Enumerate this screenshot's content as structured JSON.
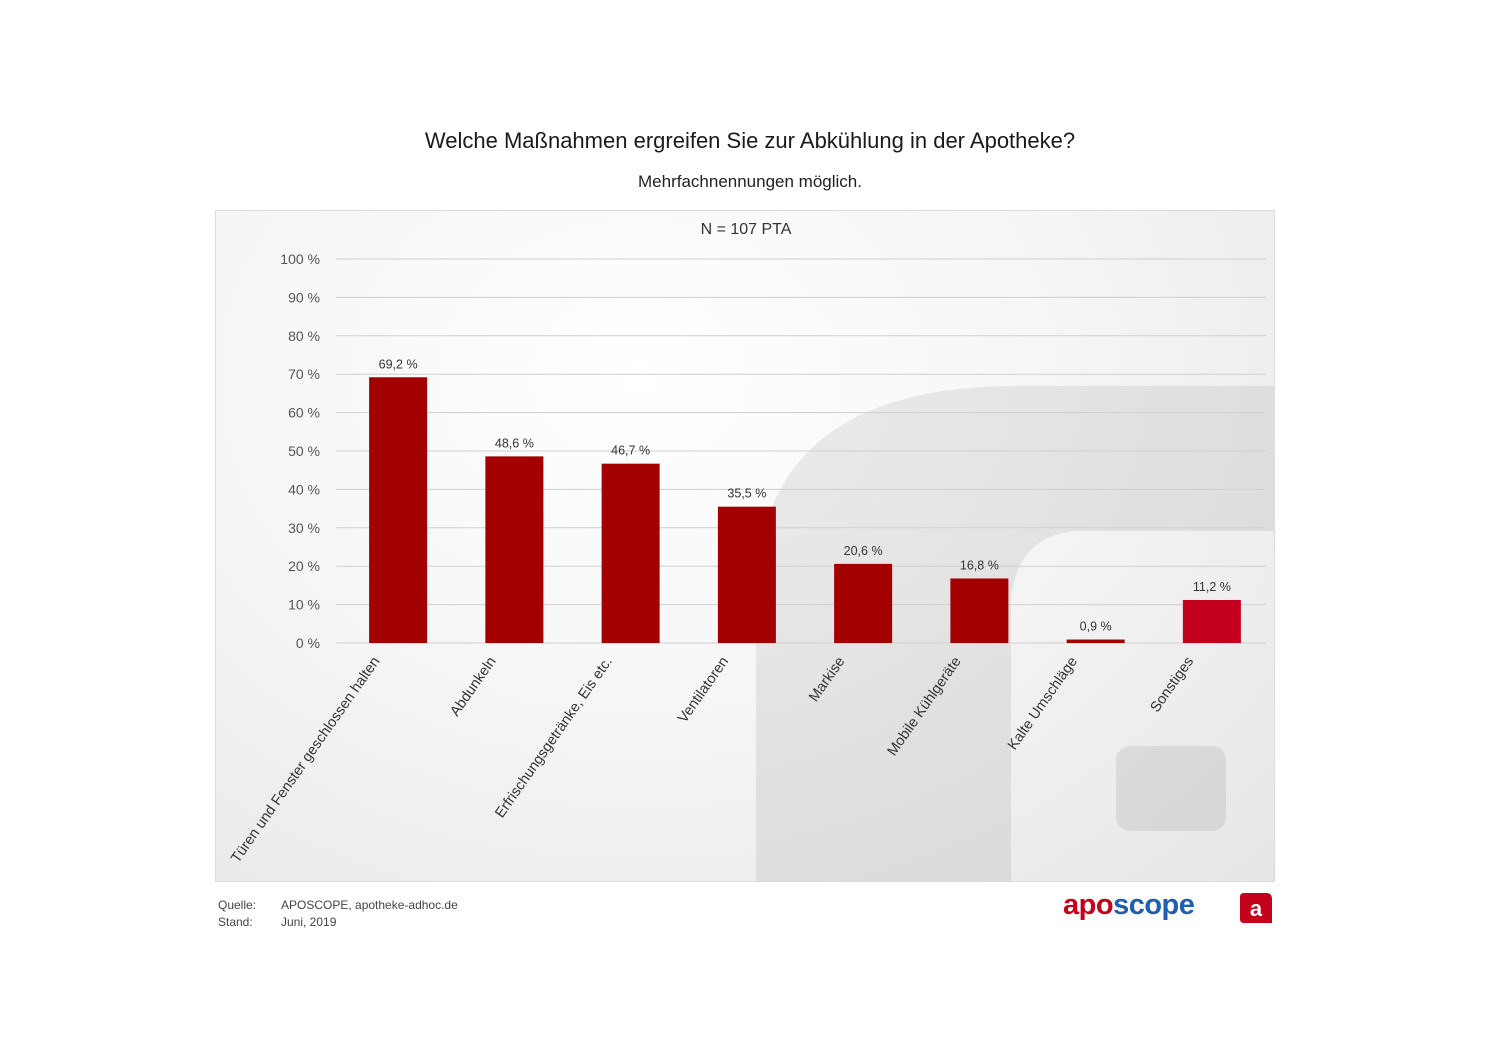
{
  "header": {
    "title": "Welche Maßnahmen ergreifen Sie zur Abkühlung in der Apotheke?",
    "subtitle": "Mehrfachnennungen möglich."
  },
  "chart_data": {
    "type": "bar",
    "title": "Welche Maßnahmen ergreifen Sie zur Abkühlung in der Apotheke?",
    "subtitle": "Mehrfachnennungen möglich.",
    "annotation": "N = 107 PTA",
    "xlabel": "",
    "ylabel": "",
    "ylim": [
      0,
      100
    ],
    "yticks": [
      0,
      10,
      20,
      30,
      40,
      50,
      60,
      70,
      80,
      90,
      100
    ],
    "ytick_labels": [
      "0 %",
      "10 %",
      "20 %",
      "30 %",
      "40 %",
      "50 %",
      "60 %",
      "70 %",
      "80 %",
      "90 %",
      "100 %"
    ],
    "grid": true,
    "categories": [
      "Türen und Fenster geschlossen halten",
      "Abdunkeln",
      "Erfrischungsgetränke, Eis etc.",
      "Ventilatoren",
      "Markise",
      "Mobile Kühlgeräte",
      "Kalte Umschläge",
      "Sonstiges"
    ],
    "values": [
      69.2,
      48.6,
      46.7,
      35.5,
      20.6,
      16.8,
      0.9,
      11.2
    ],
    "value_labels": [
      "69,2 %",
      "48,6 %",
      "46,7 %",
      "35,5 %",
      "20,6 %",
      "16,8 %",
      "0,9 %",
      "11,2 %"
    ],
    "colors": [
      "#a30000",
      "#a30000",
      "#a30000",
      "#a30000",
      "#a30000",
      "#a30000",
      "#a30000",
      "#c4001f"
    ]
  },
  "footer": {
    "source_label": "Quelle:",
    "source_value": "APOSCOPE, apotheke-adhoc.de",
    "date_label": "Stand:",
    "date_value": "Juni, 2019"
  },
  "brand": {
    "part1": "apo",
    "part2": "scope",
    "icon_letter": "a",
    "color_red": "#c4001a",
    "color_blue": "#1f5fb0"
  }
}
